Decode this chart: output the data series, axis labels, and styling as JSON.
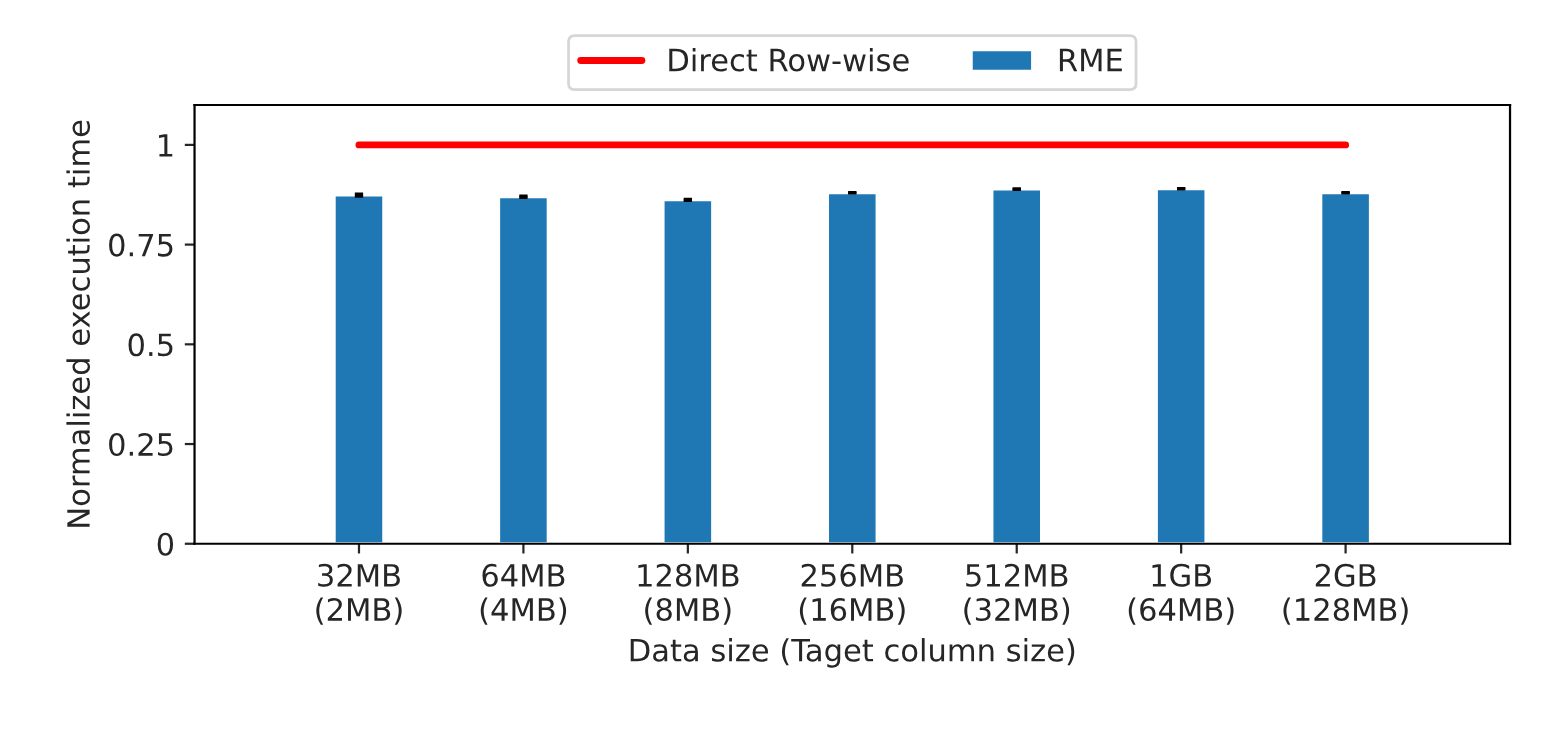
{
  "chart_data": {
    "type": "bar",
    "xlabel": "Data size (Taget column size)",
    "ylabel": "Normalized execution time",
    "categories": [
      "32MB\n(2MB)",
      "64MB\n(4MB)",
      "128MB\n(8MB)",
      "256MB\n(16MB)",
      "512MB\n(32MB)",
      "1GB\n(64MB)",
      "2GB\n(128MB)"
    ],
    "series": [
      {
        "name": "Direct Row-wise",
        "type": "line",
        "color": "#ff0000",
        "values": [
          1,
          1,
          1,
          1,
          1,
          1,
          1
        ]
      },
      {
        "name": "RME",
        "color": "#1f77b4",
        "values": [
          0.874,
          0.87,
          0.862,
          0.88,
          0.889,
          0.89,
          0.88
        ],
        "errors": [
          0.003,
          0.002,
          0.002,
          0.001,
          0.001,
          0.001,
          0.001
        ]
      }
    ],
    "ylim": [
      0,
      1.1
    ],
    "yticks": [
      0,
      {
        "value": 0.25,
        "label": "0.25"
      },
      {
        "value": 0.5,
        "label": "0.5"
      },
      {
        "value": 0.75,
        "label": "0.75"
      },
      1
    ],
    "legend": "top",
    "grid": false
  }
}
